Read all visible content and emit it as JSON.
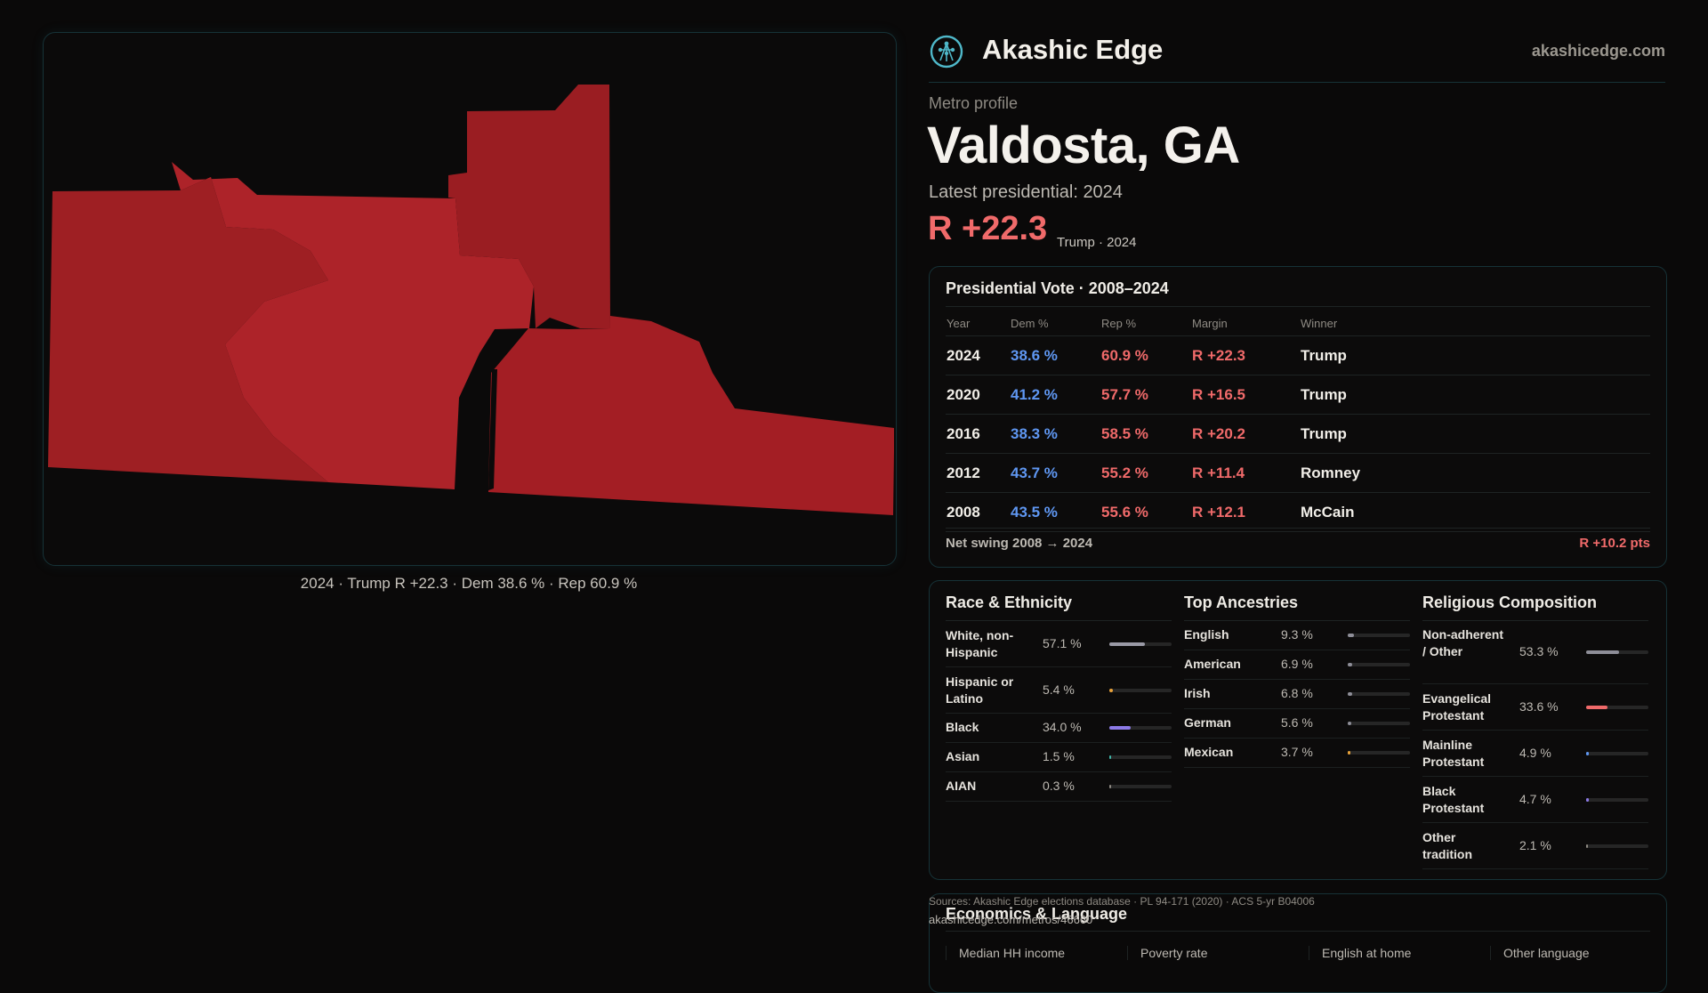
{
  "map": {
    "caption": "2024 · Trump R +22.3 · Dem 38.6 % · Rep 60.9 %",
    "colors": {
      "dark": "#9d1e22",
      "mid": "#a82025",
      "light": "#b0242a"
    }
  },
  "brand": {
    "name": "Akashic Edge",
    "url": "akashicedge.com",
    "logo_icon": "tree-of-life-icon",
    "accent": "#4fb8c9"
  },
  "header": {
    "eyebrow": "Metro profile",
    "title": "Valdosta, GA",
    "latest_label": "Latest presidential: 2024",
    "big_margin": "R +22.3",
    "big_margin_sub": "Trump · 2024"
  },
  "vote": {
    "title": "Presidential Vote · 2008–2024",
    "columns": [
      "Year",
      "Dem %",
      "Rep %",
      "Margin",
      "Winner"
    ],
    "rows": [
      {
        "year": "2024",
        "dem": "38.6 %",
        "rep": "60.9 %",
        "margin": "R +22.3",
        "winner": "Trump"
      },
      {
        "year": "2020",
        "dem": "41.2 %",
        "rep": "57.7 %",
        "margin": "R +16.5",
        "winner": "Trump"
      },
      {
        "year": "2016",
        "dem": "38.3 %",
        "rep": "58.5 %",
        "margin": "R +20.2",
        "winner": "Trump"
      },
      {
        "year": "2012",
        "dem": "43.7 %",
        "rep": "55.2 %",
        "margin": "R +11.4",
        "winner": "Romney"
      },
      {
        "year": "2008",
        "dem": "43.5 %",
        "rep": "55.6 %",
        "margin": "R +12.1",
        "winner": "McCain"
      }
    ],
    "swing_label": "Net swing 2008 → 2024",
    "swing_value": "R +10.2 pts",
    "colors": {
      "dem": "#5f97f2",
      "rep": "#f06a6a"
    }
  },
  "race": {
    "title": "Race & Ethnicity",
    "items": [
      {
        "label": "White, non-Hispanic",
        "value": "57.1 %",
        "share": 0.571,
        "color": "#9a9aa6"
      },
      {
        "label": "Hispanic or Latino",
        "value": "5.4 %",
        "share": 0.054,
        "color": "#e8a23a"
      },
      {
        "label": "Black",
        "value": "34.0 %",
        "share": 0.34,
        "color": "#8c7ae6"
      },
      {
        "label": "Asian",
        "value": "1.5 %",
        "share": 0.015,
        "color": "#3fb6a8"
      },
      {
        "label": "AIAN",
        "value": "0.3 %",
        "share": 0.003,
        "color": "#8e8a83"
      }
    ]
  },
  "ancestry": {
    "title": "Top Ancestries",
    "items": [
      {
        "label": "English",
        "value": "9.3 %",
        "share": 0.093,
        "color": "#8e8e98"
      },
      {
        "label": "American",
        "value": "6.9 %",
        "share": 0.069,
        "color": "#8e8e98"
      },
      {
        "label": "Irish",
        "value": "6.8 %",
        "share": 0.068,
        "color": "#8e8e98"
      },
      {
        "label": "German",
        "value": "5.6 %",
        "share": 0.056,
        "color": "#8e8e98"
      },
      {
        "label": "Mexican",
        "value": "3.7 %",
        "share": 0.037,
        "color": "#e8a23a"
      }
    ]
  },
  "religion": {
    "title": "Religious Composition",
    "items": [
      {
        "label": "Non-adherent / Other",
        "value": "53.3 %",
        "share": 0.533,
        "color": "#8e8e98"
      },
      {
        "label": "Evangelical Protestant",
        "value": "33.6 %",
        "share": 0.336,
        "color": "#f06a6a"
      },
      {
        "label": "Mainline Protestant",
        "value": "4.9 %",
        "share": 0.049,
        "color": "#5f97f2"
      },
      {
        "label": "Black Protestant",
        "value": "4.7 %",
        "share": 0.047,
        "color": "#8c7ae6"
      },
      {
        "label": "Other tradition",
        "value": "2.1 %",
        "share": 0.021,
        "color": "#8e8a83"
      }
    ]
  },
  "economics": {
    "title": "Economics & Language",
    "columns": [
      "Median HH income",
      "Poverty rate",
      "English at home",
      "Other language"
    ]
  },
  "footer": {
    "sources": "Sources: Akashic Edge elections database · PL 94-171 (2020) · ACS 5-yr B04006",
    "url": "akashicedge.com/metros/46660"
  }
}
